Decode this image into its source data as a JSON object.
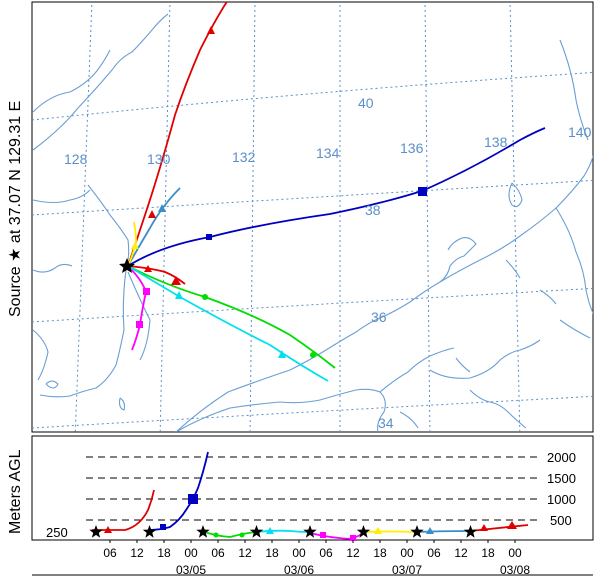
{
  "map": {
    "source_label": "Source ★ at   37.07 N  129.31 E",
    "longitude_labels": [
      "128",
      "130",
      "132",
      "134",
      "136",
      "138",
      "140"
    ],
    "latitude_labels": [
      "40",
      "38",
      "36",
      "34"
    ]
  },
  "profile": {
    "y_title": "Meters AGL",
    "start_height": "250",
    "altitude_labels": [
      "2000",
      "1500",
      "1000",
      "500"
    ],
    "hour_ticks": [
      "06",
      "12",
      "18",
      "00",
      "06",
      "12",
      "18",
      "00",
      "06",
      "12",
      "18",
      "00",
      "06",
      "12",
      "18",
      "00"
    ],
    "date_labels": [
      "03/05",
      "03/06",
      "03/07",
      "03/08"
    ]
  },
  "trajectory_colors": {
    "red": "#e00000",
    "blue": "#0000c0",
    "steel_blue": "#3a8ec8",
    "yellow": "#ffee00",
    "magenta": "#ff00ff",
    "green": "#00dd00",
    "cyan": "#00e0ee",
    "map_lines": "#6a9fd4",
    "grid": "#5b8fc9"
  }
}
